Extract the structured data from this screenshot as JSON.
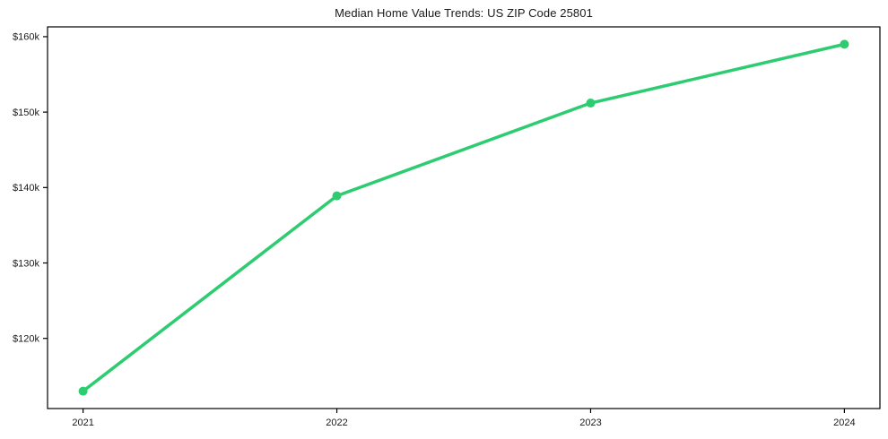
{
  "chart_data": {
    "type": "line",
    "title": "Median Home Value Trends: US ZIP Code 25801",
    "categories": [
      "2021",
      "2022",
      "2023",
      "2024"
    ],
    "x": [
      2021,
      2022,
      2023,
      2024
    ],
    "series": [
      {
        "name": "Median home value",
        "color": "#2ecc71",
        "marker": "circle",
        "values": [
          113000,
          138900,
          151200,
          159000
        ]
      }
    ],
    "xlabel": "",
    "ylabel": "",
    "xlim": [
      2020.86,
      2024.14
    ],
    "ylim": [
      110700,
      161300
    ],
    "yticks": [
      {
        "value": 120000,
        "label": "$120k"
      },
      {
        "value": 130000,
        "label": "$130k"
      },
      {
        "value": 140000,
        "label": "$140k"
      },
      {
        "value": 150000,
        "label": "$150k"
      },
      {
        "value": 160000,
        "label": "$160k"
      }
    ],
    "xticks": [
      {
        "value": 2021,
        "label": "2021"
      },
      {
        "value": 2022,
        "label": "2022"
      },
      {
        "value": 2023,
        "label": "2023"
      },
      {
        "value": 2024,
        "label": "2024"
      }
    ],
    "grid": false,
    "legend": {
      "visible": false
    },
    "colors": {
      "line": "#2ecc71",
      "axis": "#000000",
      "text": "#1a1a1a",
      "background": "#ffffff"
    }
  }
}
